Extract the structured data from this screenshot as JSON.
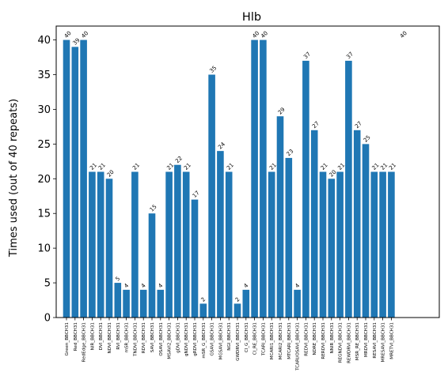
{
  "chart_data": {
    "type": "bar",
    "title": "Hlb",
    "xlabel": "",
    "ylabel": "Times used (out of 40 repeats)",
    "ylim": [
      0,
      42
    ],
    "yticks": [
      0,
      5,
      10,
      15,
      20,
      25,
      30,
      35,
      40
    ],
    "grid": false,
    "bar_color": "#1f77b4",
    "categories": [
      "Green_BBCH31",
      "Red_BBCH31",
      "RedEdge_BBCH31",
      "NIR_BBCH31",
      "DVI_BBCH31",
      "NDVI_BBCH31",
      "RVI_BBCH31",
      "mSR_BBCH31",
      "TNDVI_BBCH31",
      "RDVI_BBCH31",
      "SAVI_BBCH31",
      "OSAVI_BBCH31",
      "MSAVI2_BBCH31",
      "gDVI_BBCH31",
      "gNDVI_BBCH31",
      "gRDVI_BBCH31",
      "mSR_G_BBCH31",
      "GSAVI_BBCH31",
      "MGSAVI_BBCH31",
      "NGI_BBCH31",
      "GWDRVI_BBCH31",
      "CI_G_BBCH31",
      "CI_RE_BBCH31",
      "TCARI_BBCH31",
      "MCARI1_BBCH31",
      "MCARI2_BBCH31",
      "MTCARI_BBCH31",
      "TCARI/OSAVI_BBCH31",
      "REDVI_BBCH31",
      "NDRE_BBCH31",
      "RERDVI_BBCH31",
      "NNIR_BBCH31",
      "REGNDVI_BBCH31",
      "REWDRVI_BBCH31",
      "MSR_RE_BBCH31",
      "MRDVI_BBCH31",
      "RESAVI_BBCH31",
      "MRESAVI_BBCH31",
      "MRETVI_BBCH31"
    ],
    "values": [
      40,
      39,
      40,
      21,
      21,
      20,
      5,
      4,
      21,
      4,
      15,
      4,
      21,
      22,
      21,
      17,
      2,
      35,
      24,
      21,
      2,
      4,
      40,
      40,
      21,
      29,
      23,
      4,
      37,
      27,
      21,
      20,
      21,
      37,
      27,
      25,
      21,
      21,
      21
    ],
    "extra_annotation": "40"
  }
}
